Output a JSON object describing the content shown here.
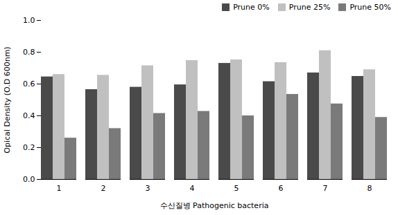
{
  "chart_data": {
    "type": "bar",
    "categories": [
      "1",
      "2",
      "3",
      "4",
      "5",
      "6",
      "7",
      "8"
    ],
    "series": [
      {
        "name": "Prune 0%",
        "color": "#4a4a4a",
        "values": [
          0.645,
          0.565,
          0.58,
          0.595,
          0.73,
          0.615,
          0.67,
          0.648
        ]
      },
      {
        "name": "Prune 25%",
        "color": "#c0c0c0",
        "values": [
          0.66,
          0.655,
          0.715,
          0.748,
          0.752,
          0.735,
          0.81,
          0.69
        ]
      },
      {
        "name": "Prune 50%",
        "color": "#7a7a7a",
        "values": [
          0.26,
          0.32,
          0.415,
          0.428,
          0.4,
          0.535,
          0.475,
          0.39
        ]
      }
    ],
    "xlabel": "수산질병 Pathogenic bacteria",
    "ylabel": "Opical Density (O.D 600nm)",
    "ylim": [
      0,
      1.0
    ],
    "yticks": [
      {
        "value": 0,
        "label": "0.0"
      },
      0.2,
      0.4,
      0.6,
      0.8,
      {
        "value": 1,
        "label": "1.0"
      }
    ],
    "grid": false,
    "legend": "upper right"
  }
}
